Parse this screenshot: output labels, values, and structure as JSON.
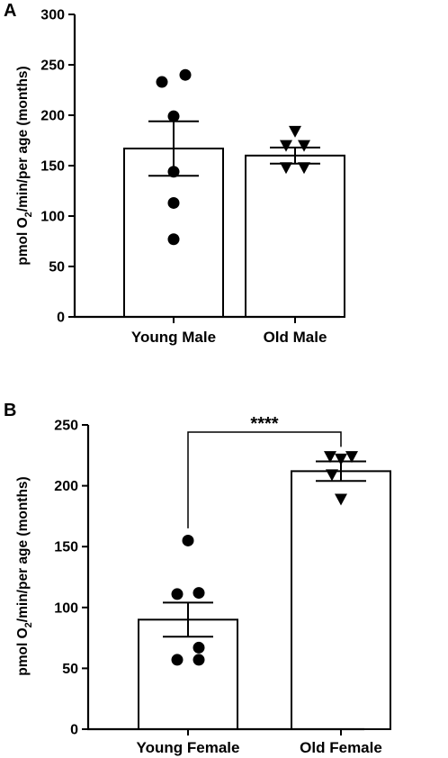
{
  "chart_data": [
    {
      "panel": "A",
      "type": "bar",
      "categories": [
        "Young Male",
        "Old Male"
      ],
      "values": [
        167,
        160
      ],
      "sem": [
        27,
        8
      ],
      "points": [
        [
          233,
          240,
          199,
          144,
          113,
          77
        ],
        [
          184,
          170,
          170,
          148,
          148
        ]
      ],
      "markers": [
        "circle",
        "triangle-down"
      ],
      "ylabel_prefix": "pmol O",
      "ylabel_sub": "2",
      "ylabel_suffix": "/min/per age (months)",
      "ylim": [
        0,
        300
      ],
      "yticks": [
        "0",
        "50",
        "100",
        "150",
        "200",
        "250",
        "300"
      ],
      "significance": null
    },
    {
      "panel": "B",
      "type": "bar",
      "categories": [
        "Young Female",
        "Old Female"
      ],
      "values": [
        90,
        212
      ],
      "sem": [
        14,
        8
      ],
      "points": [
        [
          155,
          111,
          112,
          67,
          57,
          57
        ],
        [
          224,
          224,
          222,
          209,
          189
        ]
      ],
      "markers": [
        "circle",
        "triangle-down"
      ],
      "ylabel_prefix": "pmol O",
      "ylabel_sub": "2",
      "ylabel_suffix": "/min/per age (months)",
      "ylim": [
        0,
        250
      ],
      "yticks": [
        "0",
        "50",
        "100",
        "150",
        "200",
        "250"
      ],
      "significance": "****"
    }
  ]
}
